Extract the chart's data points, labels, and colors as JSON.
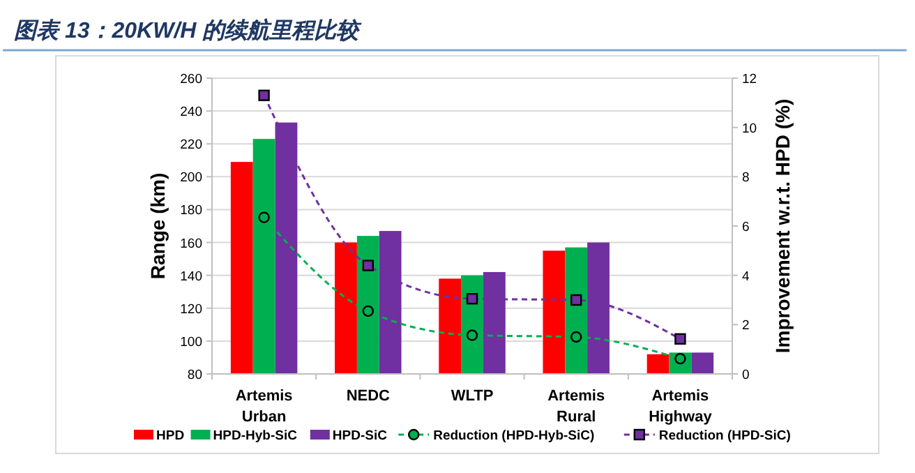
{
  "chart_data": {
    "type": "bar",
    "title": "图表 13：20KW/H 的续航里程比较",
    "ylabel": "Range (km)",
    "y2label": "Improvement w.r.t. HPD (%)",
    "categories": [
      "Artemis\nUrban",
      "NEDC",
      "WLTP",
      "Artemis\nRural",
      "Artemis\nHighway"
    ],
    "series": [
      {
        "name": "HPD",
        "color": "#ff0000",
        "values": [
          209,
          160,
          138,
          155,
          92
        ]
      },
      {
        "name": "HPD-Hyb-SiC",
        "color": "#00b050",
        "values": [
          223,
          164,
          140,
          157,
          93
        ]
      },
      {
        "name": "HPD-SiC",
        "color": "#7030a0",
        "values": [
          233,
          167,
          142,
          160,
          93
        ]
      },
      {
        "name": "Reduction (HPD-Hyb-SiC)",
        "type": "line",
        "axis": "y2",
        "color": "#00b050",
        "marker": "circle",
        "line_style": "dashed",
        "values": [
          6.35,
          2.55,
          1.57,
          1.5,
          0.62
        ]
      },
      {
        "name": "Reduction (HPD-SiC)",
        "type": "line",
        "axis": "y2",
        "color": "#7030a0",
        "marker": "square",
        "line_style": "dashed",
        "values": [
          11.3,
          4.4,
          3.05,
          3.0,
          1.42
        ]
      }
    ],
    "ylim": [
      80,
      260
    ],
    "yticks": [
      80,
      100,
      120,
      140,
      160,
      180,
      200,
      220,
      240,
      260
    ],
    "y2lim": [
      0,
      12
    ],
    "y2ticks": [
      0,
      2,
      4,
      6,
      8,
      10,
      12
    ],
    "grid": "y",
    "legend": "bottom"
  }
}
